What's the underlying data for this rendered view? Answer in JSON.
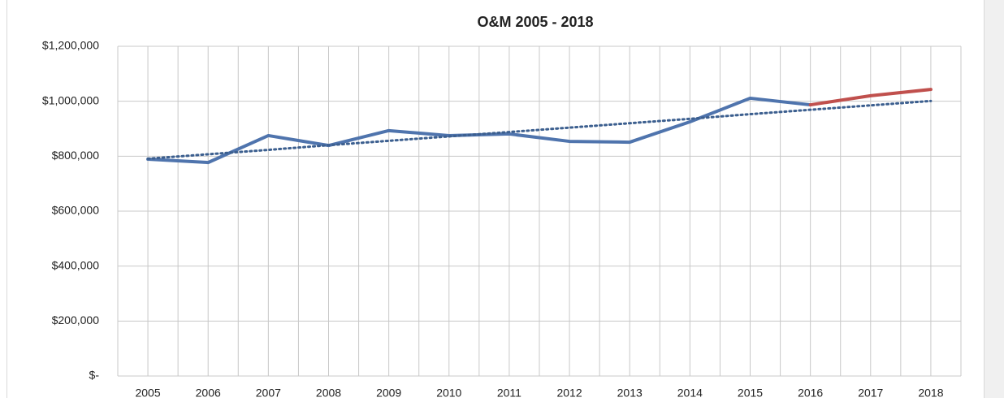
{
  "chart_data": {
    "type": "line",
    "title": "O&M 2005 - 2018",
    "categories": [
      "2005",
      "2006",
      "2007",
      "2008",
      "2009",
      "2010",
      "2011",
      "2012",
      "2013",
      "2014",
      "2015",
      "2016",
      "2017",
      "2018"
    ],
    "series": [
      {
        "color": "#4f74ad",
        "style": "solid",
        "values": [
          789000,
          777000,
          875000,
          839000,
          893000,
          875000,
          881000,
          854000,
          851000,
          925000,
          1011000,
          987000,
          null,
          null
        ]
      },
      {
        "color": "#c0504d",
        "style": "solid",
        "values": [
          null,
          null,
          null,
          null,
          null,
          null,
          null,
          null,
          null,
          null,
          null,
          987000,
          1020000,
          1043000
        ]
      },
      {
        "color": "#3c5f8f",
        "style": "dotted",
        "values": [
          791000,
          807000,
          823000,
          840000,
          856000,
          872000,
          888000,
          904000,
          920000,
          936000,
          953000,
          969000,
          985000,
          1001000
        ]
      }
    ],
    "ylim": [
      0,
      1200000
    ],
    "yticks": [
      {
        "value": 0,
        "label": "$-"
      },
      {
        "value": 200000,
        "label": "$200,000"
      },
      {
        "value": 400000,
        "label": "$400,000"
      },
      {
        "value": 600000,
        "label": "$600,000"
      },
      {
        "value": 800000,
        "label": "$800,000"
      },
      {
        "value": 1000000,
        "label": "$1,000,000"
      },
      {
        "value": 1200000,
        "label": "$1,200,000"
      }
    ],
    "grid": true
  }
}
